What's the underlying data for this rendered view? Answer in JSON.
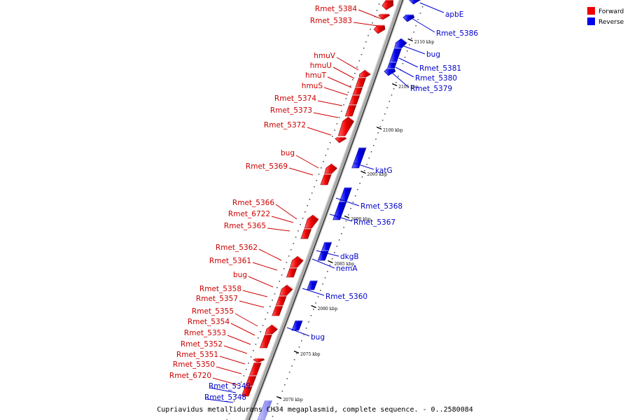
{
  "caption": "Cupriavidus metallidurans CH34 megaplasmid, complete sequence. - 0..2580084",
  "legend": {
    "forward_label": "Forward",
    "reverse_label": "Reverse",
    "forward_color": "#ee0000",
    "reverse_color": "#0000ee"
  },
  "colors": {
    "forward": "#ee0000",
    "reverse": "#0000ee",
    "forward_label": "#cc0000",
    "reverse_label": "#0000cc",
    "backbone": "#aaaaaa",
    "backbone_dark": "#222222"
  },
  "ticks": [
    {
      "label": "2110 kbp",
      "kbp": 2110
    },
    {
      "label": "2105 kbp",
      "kbp": 2105
    },
    {
      "label": "2100 kbp",
      "kbp": 2100
    },
    {
      "label": "2095 kbp",
      "kbp": 2095
    },
    {
      "label": "2090 kbp",
      "kbp": 2090
    },
    {
      "label": "2085 kbp",
      "kbp": 2085
    },
    {
      "label": "2080 kbp",
      "kbp": 2080
    },
    {
      "label": "2075 kbp",
      "kbp": 2075
    },
    {
      "label": "2070 kbp",
      "kbp": 2070
    }
  ],
  "forward_genes": [
    {
      "name": "Rmet_5384"
    },
    {
      "name": "Rmet_5383"
    },
    {
      "name": "hmuV"
    },
    {
      "name": "hmuU"
    },
    {
      "name": "hmuT"
    },
    {
      "name": "hmuS"
    },
    {
      "name": "Rmet_5374"
    },
    {
      "name": "Rmet_5373"
    },
    {
      "name": "Rmet_5372"
    },
    {
      "name": "bug"
    },
    {
      "name": "Rmet_5369"
    },
    {
      "name": "Rmet_5366"
    },
    {
      "name": "Rmet_6722"
    },
    {
      "name": "Rmet_5365"
    },
    {
      "name": "Rmet_5362"
    },
    {
      "name": "Rmet_5361"
    },
    {
      "name": "bug"
    },
    {
      "name": "Rmet_5358"
    },
    {
      "name": "Rmet_5357"
    },
    {
      "name": "Rmet_5355"
    },
    {
      "name": "Rmet_5354"
    },
    {
      "name": "Rmet_5353"
    },
    {
      "name": "Rmet_5352"
    },
    {
      "name": "Rmet_5351"
    },
    {
      "name": "Rmet_5350"
    },
    {
      "name": "Rmet_6720"
    }
  ],
  "reverse_genes": [
    {
      "name": "apbE"
    },
    {
      "name": "Rmet_5386"
    },
    {
      "name": "bug"
    },
    {
      "name": "Rmet_5381"
    },
    {
      "name": "Rmet_5380"
    },
    {
      "name": "Rmet_5379"
    },
    {
      "name": "katG"
    },
    {
      "name": "Rmet_5368"
    },
    {
      "name": "Rmet_5367"
    },
    {
      "name": "dkgB"
    },
    {
      "name": "nemA"
    },
    {
      "name": "Rmet_5360"
    },
    {
      "name": "bug"
    },
    {
      "name": "Rmet_5349"
    },
    {
      "name": "Rmet_5348"
    }
  ]
}
